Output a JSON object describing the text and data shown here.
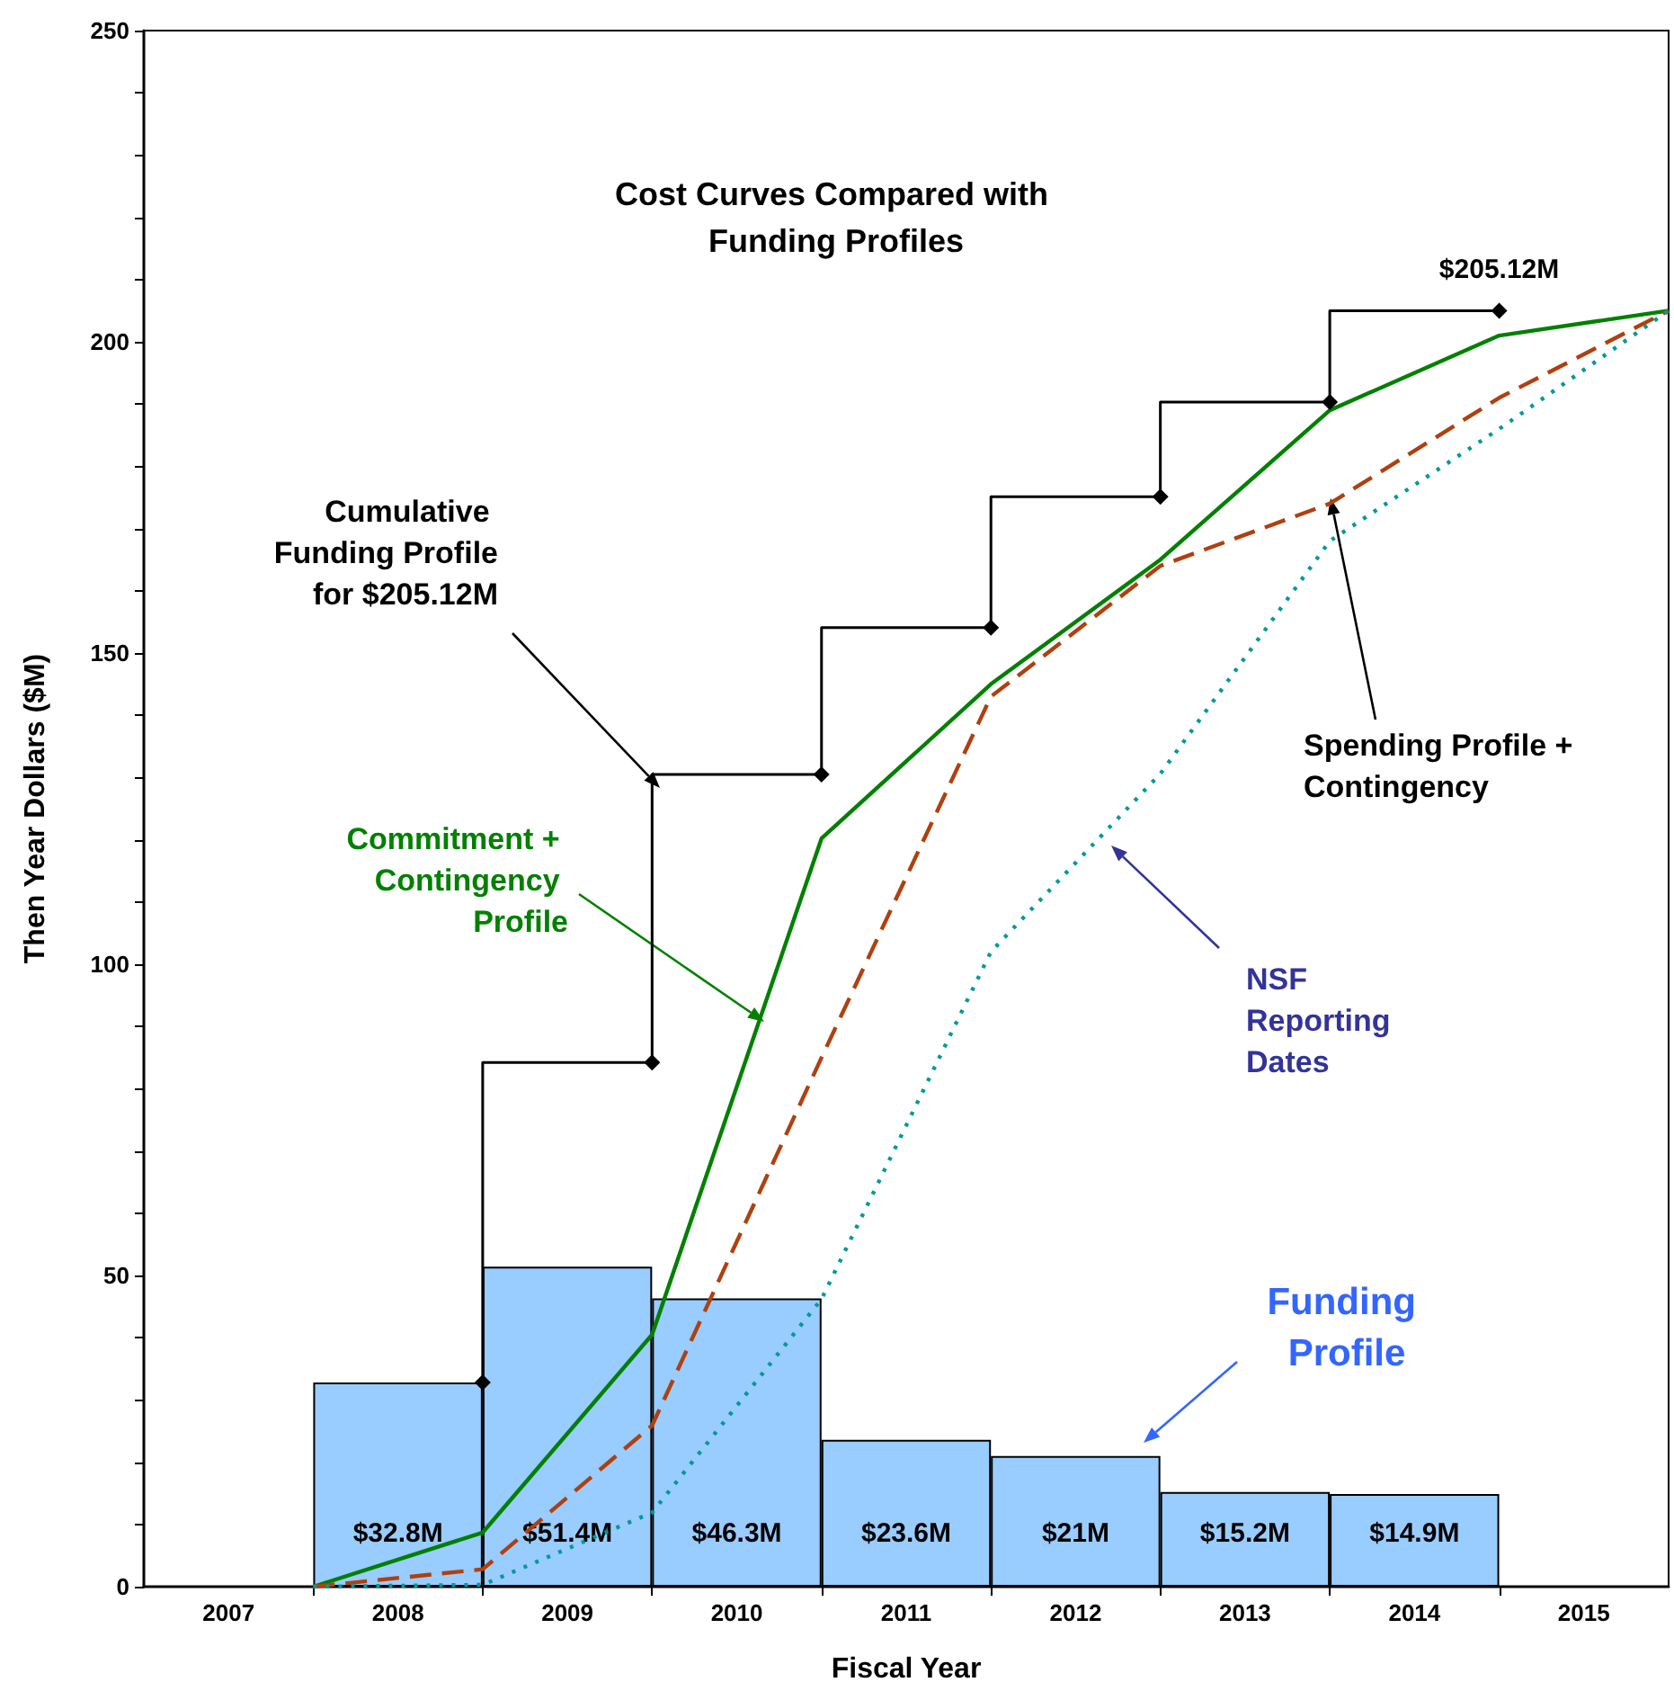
{
  "chart_data": {
    "type": "line",
    "title": "Cost Curves Compared with Funding Profiles",
    "xlabel": "Fiscal Year",
    "ylabel": "Then Year Dollars ($M)",
    "xlim": [
      2006.5,
      2015.5
    ],
    "xticks": [
      2007,
      {
        "value": 2007.5,
        "label": null
      },
      2008,
      {
        "value": 2008.5,
        "label": null
      },
      2009,
      {
        "value": 2009.5,
        "label": null
      },
      2010,
      {
        "value": 2010.5,
        "label": null
      },
      2011,
      {
        "value": 2011.5,
        "label": null
      },
      2012,
      {
        "value": 2012.5,
        "label": null
      },
      2013,
      {
        "value": 2013.5,
        "label": null
      },
      2014,
      {
        "value": 2014.5,
        "label": null
      },
      2015
    ],
    "ylim": [
      0,
      250
    ],
    "yticks": [
      0,
      {
        "value": 10,
        "label": null
      },
      {
        "value": 20,
        "label": null
      },
      {
        "value": 30,
        "label": null
      },
      {
        "value": 40,
        "label": null
      },
      50,
      {
        "value": 60,
        "label": null
      },
      {
        "value": 70,
        "label": null
      },
      {
        "value": 80,
        "label": null
      },
      {
        "value": 90,
        "label": null
      },
      100,
      {
        "value": 110,
        "label": null
      },
      {
        "value": 120,
        "label": null
      },
      {
        "value": 130,
        "label": null
      },
      {
        "value": 140,
        "label": null
      },
      150,
      {
        "value": 160,
        "label": null
      },
      {
        "value": 170,
        "label": null
      },
      {
        "value": 180,
        "label": null
      },
      {
        "value": 190,
        "label": null
      },
      200,
      {
        "value": 210,
        "label": null
      },
      {
        "value": 220,
        "label": null
      },
      {
        "value": 230,
        "label": null
      },
      {
        "value": 240,
        "label": null
      },
      250
    ],
    "grid": false,
    "legend": false,
    "series": [
      {
        "type": "bar",
        "color": "#99ccff",
        "x": [
          2008,
          2009,
          2010,
          2011,
          2012,
          2013,
          2014
        ],
        "values": [
          32.8,
          51.4,
          46.3,
          23.6,
          21,
          15.2,
          14.9
        ],
        "value_labels": [
          "$32.8M",
          "$51.4M",
          "$46.3M",
          "$23.6M",
          "$21M",
          "$15.2M",
          "$14.9M"
        ]
      },
      {
        "name": "Commitment + Contingency Profile",
        "color": "#008000",
        "line_style": "solid",
        "marker": "none",
        "x": [
          2007.5,
          2008.5,
          2009.5,
          2010.5,
          2011.5,
          2012.5,
          2013.5,
          2014.5,
          2015.5
        ],
        "values": [
          0,
          8.7,
          40.5,
          120.2,
          145,
          165,
          189,
          201,
          205
        ]
      },
      {
        "name": "Spending Profile + Contingency",
        "color": "#b0400f",
        "line_style": "dashed",
        "marker": "none",
        "x": [
          2007.5,
          2008.5,
          2009.5,
          2010.5,
          2011.5,
          2012.5,
          2013.5,
          2014.5,
          2015.5
        ],
        "values": [
          0,
          2.8,
          25.9,
          85,
          143,
          164,
          174,
          191,
          205
        ]
      },
      {
        "color": "#009999",
        "line_style": "dotted",
        "marker": "none",
        "x": [
          2007.5,
          2008.5,
          2009.5,
          2010.5,
          2011.5,
          2012.5,
          2013.5,
          2014.5,
          2015.5
        ],
        "values": [
          0,
          0.3,
          11.9,
          46.2,
          102,
          130.6,
          168,
          186,
          205
        ]
      },
      {
        "type": "step",
        "color": "#000000",
        "line_style": "solid",
        "marker": "diamond",
        "x": [
          2008.5,
          2009.5,
          2010.5,
          2011.5,
          2012.5,
          2013.5,
          2014.5
        ],
        "values": [
          32.8,
          84.2,
          130.5,
          154.1,
          175.1,
          190.3,
          205
        ]
      }
    ],
    "annotations": [
      "Funding Profile",
      "NSF Reporting Dates",
      "Cumulative Funding Profile for $205.12M",
      {
        "text": "$205.12M",
        "x": 2014.5,
        "y": 205
      }
    ]
  }
}
